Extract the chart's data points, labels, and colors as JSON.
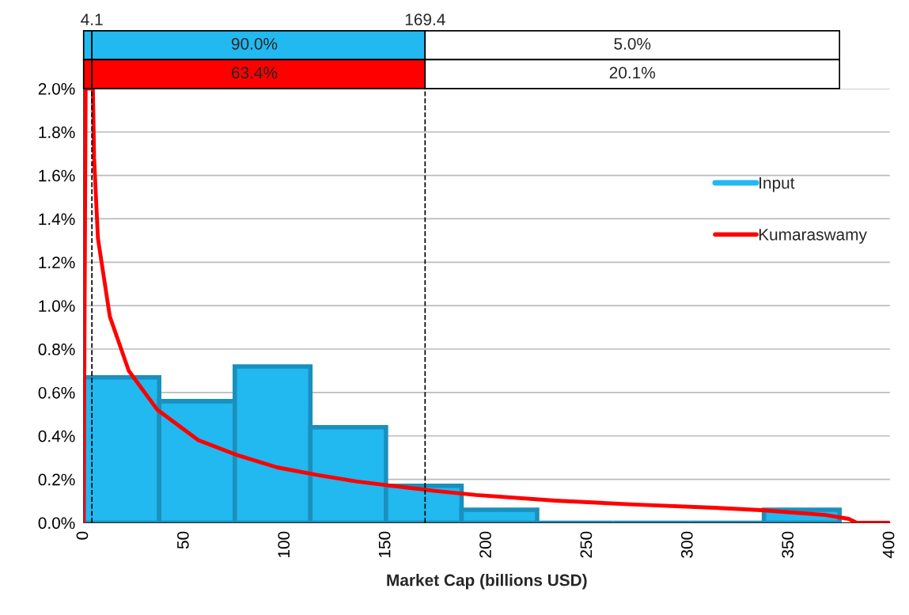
{
  "chart_data": {
    "type": "histogram",
    "xlabel": "Market Cap (billions USD)",
    "bins": [
      0,
      37.5,
      75,
      112.5,
      150,
      187.5,
      225,
      262.5,
      300,
      337.5,
      375
    ],
    "series": [
      {
        "name": "Input",
        "color": "#22b8f0",
        "values": [
          0.67,
          0.56,
          0.72,
          0.44,
          0.17,
          0.06,
          0,
          0,
          0,
          0.06
        ]
      },
      {
        "name": "Kumaraswamy",
        "type": "line",
        "color": "#ff0000",
        "x": [
          0,
          1.0,
          2.5,
          4.6,
          5.2,
          7.1,
          13,
          22.4,
          36.6,
          57,
          76.7,
          96,
          116,
          135.7,
          155,
          175,
          194.7,
          234,
          273,
          312.7,
          336,
          368,
          379.5,
          383.5,
          400
        ],
        "values": [
          0,
          2.0,
          null,
          2.0,
          1.68,
          1.31,
          0.95,
          0.7,
          0.52,
          0.38,
          0.31,
          0.255,
          0.22,
          0.19,
          0.168,
          0.146,
          0.128,
          0.102,
          0.084,
          0.069,
          0.058,
          0.036,
          0.018,
          0,
          0
        ]
      }
    ],
    "ref_lines": [
      {
        "axis": "x",
        "value": 4.1,
        "label": "4.1",
        "line_style": "dashed",
        "color": "#000000"
      },
      {
        "axis": "x",
        "value": 169.4,
        "label": "169.4",
        "line_style": "dashed",
        "color": "#000000"
      }
    ],
    "annotations": [
      "90.0%",
      "5.0%",
      "63.4%",
      "20.1%"
    ],
    "xlim": [
      0,
      400
    ],
    "xticks": [
      0,
      50,
      100,
      150,
      200,
      250,
      300,
      350,
      400
    ],
    "ylim": [
      0,
      2.0
    ],
    "yticks": [
      {
        "value": 0,
        "label": "0.0%"
      },
      {
        "value": 0.2,
        "label": "0.2%"
      },
      {
        "value": 0.4,
        "label": "0.4%"
      },
      {
        "value": 0.6,
        "label": "0.6%"
      },
      {
        "value": 0.8,
        "label": "0.8%"
      },
      {
        "value": 1.0,
        "label": "1.0%"
      },
      {
        "value": 1.2,
        "label": "1.2%"
      },
      {
        "value": 1.4,
        "label": "1.4%"
      },
      {
        "value": 1.6,
        "label": "1.6%"
      },
      {
        "value": 1.8,
        "label": "1.8%"
      },
      {
        "value": 2.0,
        "label": "2.0%"
      }
    ],
    "grid": "y",
    "legend": "right"
  }
}
